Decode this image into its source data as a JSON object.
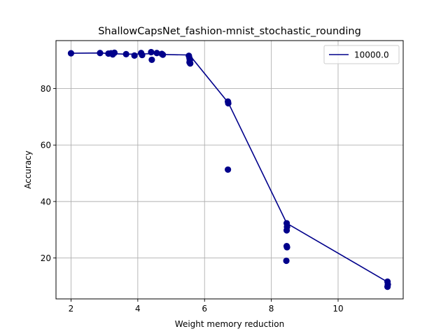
{
  "chart_data": {
    "type": "scatter",
    "title": "ShallowCapsNet_fashion-mnist_stochastic_rounding",
    "xlabel": "Weight memory reduction",
    "ylabel": "Accuracy",
    "xlim": [
      1.55,
      11.95
    ],
    "ylim": [
      5.5,
      97.0
    ],
    "xticks": [
      2,
      4,
      6,
      8,
      10
    ],
    "yticks": [
      20,
      40,
      60,
      80
    ],
    "grid": true,
    "legend_position": "top-right",
    "colors": {
      "series": "#00008b",
      "grid": "#b0b0b0",
      "axes": "#000000"
    },
    "series": [
      {
        "name": "10000.0",
        "kind": "line",
        "x": [
          2.0,
          2.87,
          3.2,
          3.65,
          4.13,
          4.57,
          4.73,
          5.55,
          6.71,
          8.46,
          11.48
        ],
        "y": [
          92.5,
          92.6,
          92.4,
          92.2,
          92.3,
          92.4,
          92.1,
          91.9,
          75.0,
          32.3,
          11.5
        ]
      }
    ],
    "points": {
      "x": [
        2.0,
        2.87,
        3.12,
        3.2,
        3.25,
        3.3,
        3.65,
        3.9,
        4.1,
        4.13,
        4.4,
        4.42,
        4.57,
        4.72,
        4.75,
        5.53,
        5.55,
        5.56,
        5.55,
        5.57,
        6.7,
        6.71,
        6.7,
        8.46,
        8.47,
        8.46,
        8.46,
        8.47,
        8.45,
        11.48,
        11.49,
        11.48
      ],
      "y": [
        92.5,
        92.6,
        92.4,
        92.5,
        92.1,
        92.7,
        92.2,
        91.7,
        92.6,
        91.9,
        92.9,
        90.2,
        92.6,
        92.3,
        92.0,
        91.6,
        90.7,
        90.0,
        89.3,
        88.9,
        75.4,
        74.8,
        51.3,
        32.3,
        31.0,
        29.8,
        24.2,
        23.8,
        19.0,
        11.6,
        10.6,
        9.8
      ]
    }
  }
}
